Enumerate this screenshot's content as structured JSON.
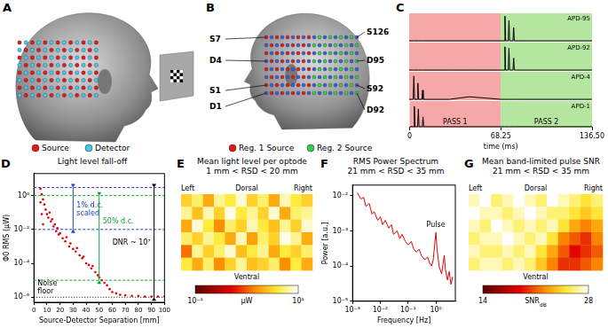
{
  "diagrams": [
    {
      "label": "A",
      "legend": [
        {
          "name": "Source",
          "color": "#e01a1a"
        },
        {
          "name": "Detector",
          "color": "#45c8f0"
        }
      ]
    },
    {
      "label": "B",
      "left_labels": [
        "S7",
        "D4",
        "S1",
        "D1"
      ],
      "right_labels": [
        "S126",
        "D95",
        "S92",
        "D92"
      ],
      "legend": [
        {
          "name": "Reg. 1 Source",
          "color": "#e01a1a"
        },
        {
          "name": "Reg. 2 Source",
          "color": "#2ad04a"
        }
      ]
    }
  ],
  "chart_data": [
    {
      "label": "C",
      "type": "line",
      "x": [
        0,
        3,
        3.5,
        4,
        6,
        6.5,
        7,
        9.5,
        10,
        10.5,
        30,
        45,
        68.25,
        71,
        71.5,
        72,
        74,
        74.5,
        75,
        77.5,
        78,
        78.5,
        100,
        136.5
      ],
      "series": [
        {
          "name": "APD-95",
          "color": "#000000",
          "values": [
            0.03,
            0.03,
            0.03,
            0.03,
            0.03,
            0.03,
            0.03,
            0.03,
            0.03,
            0.03,
            0.03,
            0.03,
            0.03,
            0.03,
            0.9,
            0.03,
            0.03,
            0.75,
            0.03,
            0.03,
            0.5,
            0.03,
            0.03,
            0.03
          ]
        },
        {
          "name": "APD-92",
          "color": "#000000",
          "values": [
            0.03,
            0.03,
            0.03,
            0.03,
            0.03,
            0.03,
            0.03,
            0.03,
            0.03,
            0.03,
            0.03,
            0.03,
            0.03,
            0.03,
            0.85,
            0.03,
            0.03,
            0.8,
            0.03,
            0.03,
            0.45,
            0.03,
            0.03,
            0.03
          ]
        },
        {
          "name": "APD-4",
          "color": "#000000",
          "values": [
            0.03,
            0.03,
            0.85,
            0.03,
            0.03,
            0.6,
            0.03,
            0.03,
            0.35,
            0.03,
            0.03,
            0.12,
            0.03,
            0.03,
            0.03,
            0.03,
            0.03,
            0.03,
            0.03,
            0.03,
            0.03,
            0.03,
            0.03,
            0.03
          ]
        },
        {
          "name": "APD-1",
          "color": "#000000",
          "values": [
            0.03,
            0.03,
            0.8,
            0.03,
            0.03,
            0.7,
            0.03,
            0.03,
            0.4,
            0.03,
            0.03,
            0.03,
            0.03,
            0.03,
            0.03,
            0.03,
            0.03,
            0.03,
            0.03,
            0.03,
            0.03,
            0.03,
            0.03,
            0.03
          ]
        }
      ],
      "xlim": [
        0,
        136.5
      ],
      "xticks": [
        0,
        68.25,
        {
          "value": 136.5,
          "label": "136.50"
        }
      ],
      "ylim": [
        0,
        1
      ],
      "tick_labels": "x",
      "grid": false,
      "x_label": "time (ms)",
      "passes": [
        {
          "name": "PASS 1",
          "range": [
            0,
            68.25
          ],
          "color": "#f6a8a8"
        },
        {
          "name": "PASS 2",
          "range": [
            68.25,
            136.5
          ],
          "color": "#b4e6a0"
        }
      ]
    },
    {
      "label": "D",
      "type": "scatter",
      "title": "Light level fall-off",
      "x": [
        5,
        5,
        6,
        6,
        7,
        7,
        8,
        9,
        10,
        11,
        12,
        13,
        14,
        15,
        16,
        17,
        18,
        19,
        20,
        22,
        24,
        25,
        27,
        28,
        30,
        32,
        33,
        35,
        37,
        38,
        40,
        42,
        44,
        45,
        47,
        49,
        50,
        52,
        54,
        56,
        58,
        60,
        63,
        66,
        70,
        75,
        80,
        85,
        90,
        95,
        100
      ],
      "values": [
        2.5,
        0.4,
        1.2,
        0.08,
        0.6,
        0.02,
        0.3,
        0.15,
        0.08,
        0.05,
        0.1,
        0.03,
        0.04,
        0.015,
        0.02,
        0.008,
        0.012,
        0.005,
        0.006,
        0.003,
        0.002,
        0.0035,
        0.001,
        0.0015,
        0.0007,
        0.0005,
        0.0008,
        0.0003,
        0.0002,
        0.00025,
        0.0001,
        8e-05,
        5e-05,
        7e-05,
        3e-05,
        2e-05,
        1.5e-05,
        1e-05,
        7e-06,
        5e-06,
        3e-06,
        2e-06,
        1.7e-06,
        1.4e-06,
        1.3e-06,
        1.2e-06,
        1.2e-06,
        1.1e-06,
        1.1e-06,
        1.1e-06,
        1.1e-06
      ],
      "color": "#e00000",
      "log": "y",
      "grid": false,
      "xlim": [
        0,
        100
      ],
      "xticks": [
        0,
        10,
        20,
        30,
        40,
        50,
        60,
        70,
        80,
        90,
        100
      ],
      "ylim": [
        5e-07,
        20
      ],
      "yticks": [
        {
          "value": 1e-06,
          "label": "10⁻⁶"
        },
        {
          "value": 0.0001,
          "label": "10⁻⁴"
        },
        {
          "value": 0.01,
          "label": "10⁻²"
        },
        {
          "value": 1,
          "label": "10⁰"
        }
      ],
      "x_label": "Source-Detector Separation [mm]",
      "y_label": "Φ0 RMS (μW)",
      "annotations": [
        {
          "text": [
            "1% d.c.",
            "scaled"
          ],
          "color": "#2040c0",
          "from": 0.01,
          "to": 3
        },
        {
          "text": [
            "50% d.c."
          ],
          "color": "#10a030",
          "from": 1e-05,
          "to": 1
        },
        {
          "text": [
            "DNR ~ 10⁷"
          ],
          "color": "#000000",
          "from": 1e-06,
          "to": 3
        },
        {
          "text": [
            "Noise",
            "floor"
          ],
          "color": "#000000",
          "at": 1e-06
        }
      ]
    },
    {
      "label": "E",
      "type": "heatmap",
      "title": "Mean light level per optode",
      "subtitle": "1 mm < RSD < 20 mm",
      "cells": [
        [
          3,
          5,
          2,
          6,
          4,
          8,
          3,
          5,
          2,
          7,
          4,
          3
        ],
        [
          6,
          2.5,
          7,
          3,
          9,
          4,
          6,
          3,
          8,
          2,
          5,
          6
        ],
        [
          2,
          8,
          4,
          1.5,
          5,
          3,
          7,
          4,
          2.5,
          6,
          3,
          8
        ],
        [
          5,
          3,
          6,
          4,
          2,
          7,
          1.8,
          5,
          3,
          9,
          6,
          2
        ],
        [
          1.2,
          6,
          3,
          5,
          8,
          2.5,
          4,
          6,
          2,
          4,
          3,
          5
        ],
        [
          4,
          2,
          5,
          1.5,
          3,
          6,
          2.5,
          3,
          5,
          1.5,
          4,
          2
        ]
      ],
      "log": true,
      "colorbar_range": [
        0.1,
        10
      ],
      "colorbar_ticks": [
        {
          "value": 0.1,
          "label": "10⁻¹"
        },
        {
          "value": 10,
          "label": "10¹"
        }
      ],
      "colorbar_label": "μW",
      "side_labels": {
        "left": "Left",
        "top": "Dorsal",
        "right": "Right",
        "bottom": "Ventral"
      }
    },
    {
      "label": "F",
      "type": "line",
      "title": "RMS Power Spectrum",
      "subtitle": "21 mm < RSD < 35 mm",
      "x": [
        0.0015,
        0.002,
        0.0025,
        0.003,
        0.004,
        0.005,
        0.006,
        0.008,
        0.01,
        0.012,
        0.015,
        0.02,
        0.025,
        0.03,
        0.04,
        0.05,
        0.06,
        0.08,
        0.1,
        0.13,
        0.16,
        0.2,
        0.25,
        0.3,
        0.4,
        0.5,
        0.6,
        0.7,
        0.8,
        0.9,
        1,
        1.1,
        1.3,
        1.6,
        2,
        2.2,
        2.6,
        3,
        3.5,
        4
      ],
      "values": [
        0.012,
        0.008,
        0.009,
        0.005,
        0.006,
        0.003,
        0.0035,
        0.002,
        0.0025,
        0.0015,
        0.002,
        0.0012,
        0.0015,
        0.0008,
        0.001,
        0.0006,
        0.0008,
        0.0005,
        0.0004,
        0.0005,
        0.0003,
        0.00025,
        0.0003,
        0.0002,
        0.00015,
        0.00018,
        0.00012,
        0.0001,
        0.00015,
        0.0004,
        0.0009,
        0.0003,
        0.0001,
        6e-05,
        0.0002,
        8e-05,
        4e-05,
        7e-05,
        3e-05,
        5e-05
      ],
      "color": "#e00000",
      "log": true,
      "grid": false,
      "xlim": [
        0.001,
        5
      ],
      "xticks": [
        {
          "value": 0.001,
          "label": "10⁻³"
        },
        {
          "value": 0.01,
          "label": "10⁻²"
        },
        {
          "value": 0.1,
          "label": "10⁻¹"
        },
        {
          "value": 1,
          "label": "10⁰"
        }
      ],
      "ylim": [
        1e-05,
        0.02
      ],
      "yticks": [
        {
          "value": 1e-05,
          "label": "10⁻⁵"
        },
        {
          "value": 0.0001,
          "label": "10⁻⁴"
        },
        {
          "value": 0.001,
          "label": "10⁻³"
        },
        {
          "value": 0.01,
          "label": "10⁻²"
        }
      ],
      "x_label": "Frequency [Hz]",
      "y_label": "Power [a.u.]",
      "annotations": [
        {
          "text": "Pulse",
          "x": 1
        }
      ]
    },
    {
      "label": "G",
      "type": "heatmap",
      "title": "Mean band-limited pulse SNR",
      "subtitle": "21 mm < RSD < 35 mm",
      "cells": [
        [
          27,
          28,
          26,
          27,
          28,
          27,
          26,
          28,
          27,
          26,
          25,
          26
        ],
        [
          28,
          27,
          27,
          26,
          27,
          28,
          27,
          26,
          26,
          25,
          24,
          25
        ],
        [
          27,
          26,
          28,
          27,
          26,
          27,
          26,
          27,
          25,
          23,
          22,
          23
        ],
        [
          26,
          27,
          27,
          28,
          27,
          26,
          27,
          25,
          22,
          21,
          20,
          22
        ],
        [
          27,
          26,
          26,
          27,
          26,
          27,
          25,
          23,
          21,
          19,
          20,
          21
        ],
        [
          26,
          27,
          27,
          26,
          27,
          26,
          24,
          22,
          20,
          20,
          21,
          22
        ]
      ],
      "colorbar_range": [
        14,
        28
      ],
      "colorbar_ticks": [
        14,
        28
      ],
      "colorbar_label": "SNR",
      "colorbar_label_sub": "dB",
      "side_labels": {
        "left": "Left",
        "top": "Dorsal",
        "right": "Right",
        "bottom": "Ventral"
      }
    }
  ]
}
